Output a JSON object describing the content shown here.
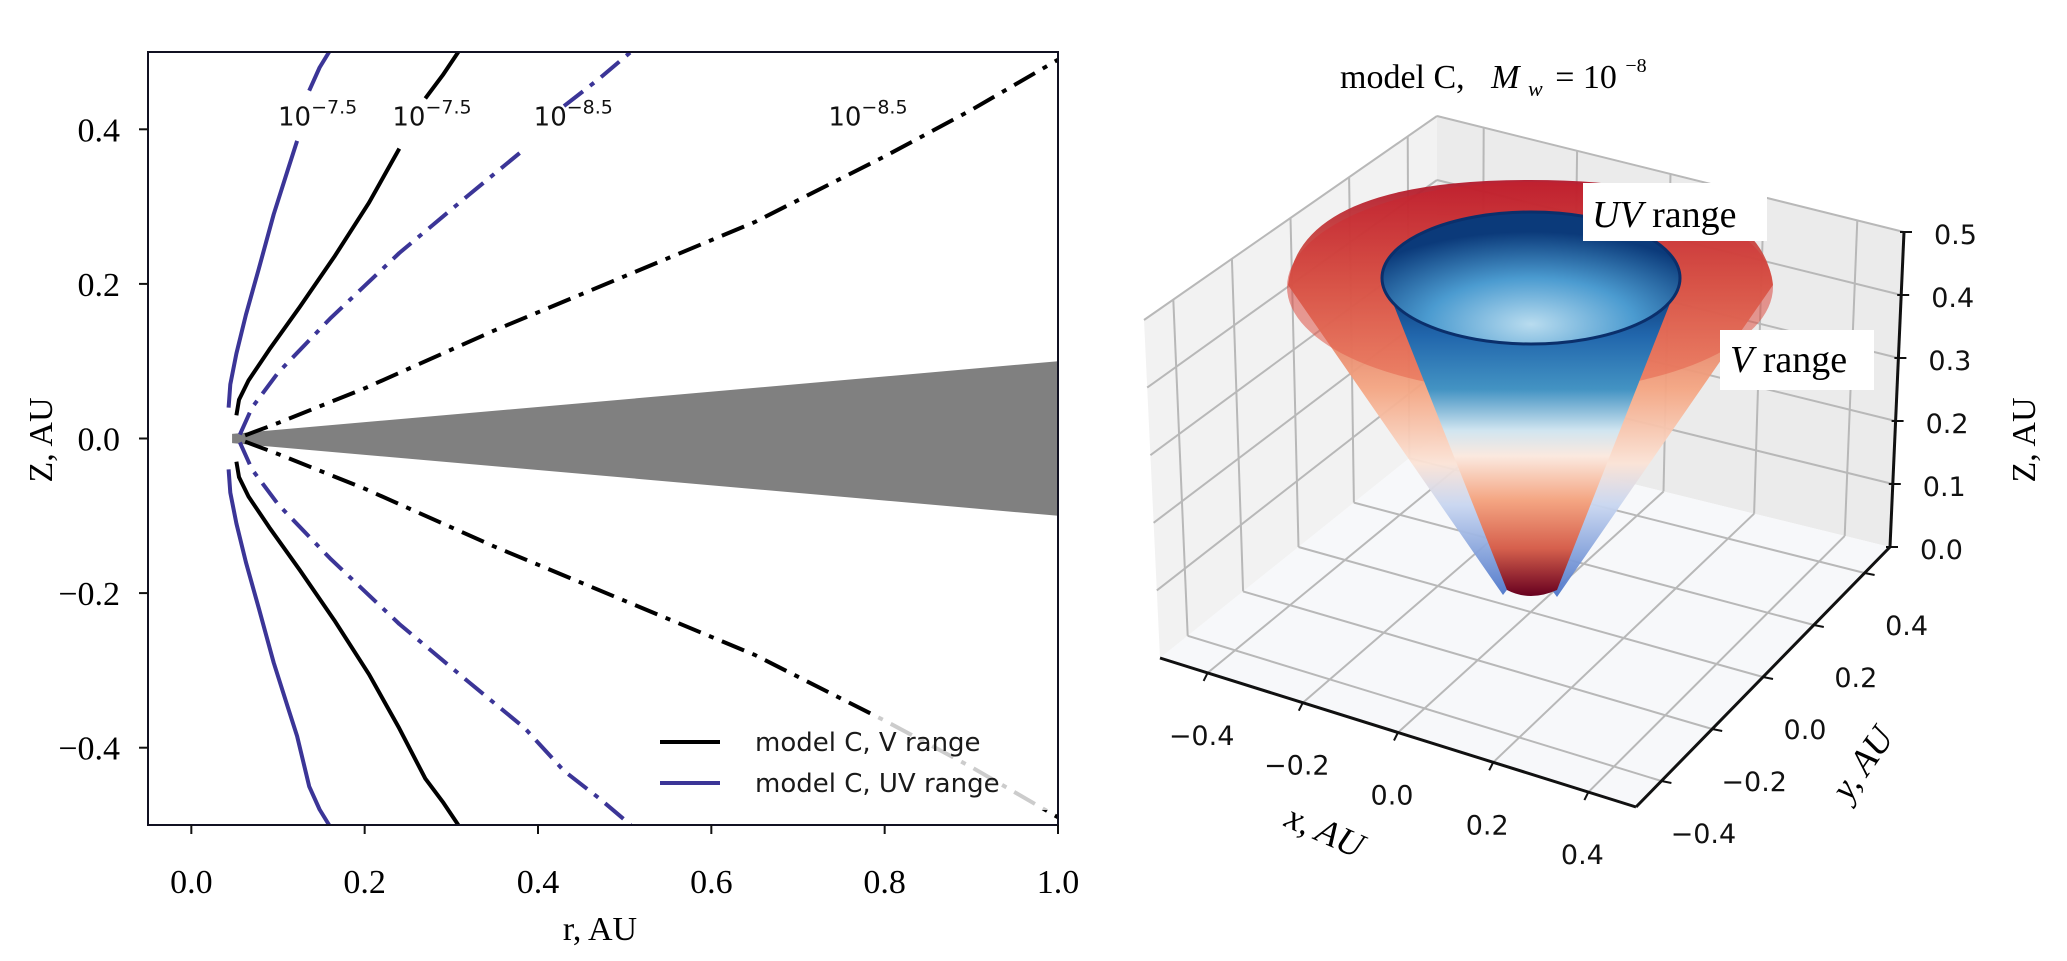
{
  "chart_data": [
    {
      "type": "line",
      "panel": "left",
      "title": "",
      "xlabel": "r, AU",
      "ylabel": "Z, AU",
      "xlim": [
        -0.05,
        1.0
      ],
      "ylim": [
        -0.5,
        0.5
      ],
      "x_ticks": [
        0.0,
        0.2,
        0.4,
        0.6,
        0.8,
        1.0
      ],
      "x_tick_labels": [
        "0.0",
        "0.2",
        "0.4",
        "0.6",
        "0.8",
        "1.0"
      ],
      "y_ticks": [
        0.4,
        0.2,
        0.0,
        -0.2,
        -0.4
      ],
      "y_tick_labels": [
        "0.4",
        "0.2",
        "0.0",
        "−0.2",
        "−0.4"
      ],
      "grid": false,
      "legend_position": "lower-right",
      "legend": [
        {
          "label": "model C, V range",
          "color": "#000000"
        },
        {
          "label": "model C, UV range",
          "color": "#3b3597"
        }
      ],
      "disk": {
        "label": "disk",
        "color": "#808080",
        "inner_r": 0.047,
        "outer_r": 1.0,
        "half_height_at_outer": 0.1
      },
      "series": [
        {
          "name": "UV range 10^-7.5",
          "range": "UV",
          "style": "solid",
          "color": "#3b3597",
          "contour_label": {
            "base": "10",
            "exp": "−7.5",
            "r": 0.1,
            "z": 0.405
          },
          "points": [
            [
              0.043,
              0.04
            ],
            [
              0.045,
              0.07
            ],
            [
              0.052,
              0.11
            ],
            [
              0.063,
              0.16
            ],
            [
              0.078,
              0.22
            ],
            [
              0.095,
              0.29
            ],
            [
              0.112,
              0.35
            ],
            [
              0.122,
              0.385
            ],
            [
              null,
              null
            ],
            [
              0.136,
              0.45
            ],
            [
              0.148,
              0.48
            ],
            [
              0.159,
              0.5
            ]
          ],
          "mirror": true
        },
        {
          "name": "V range 10^-7.5",
          "range": "V",
          "style": "solid",
          "color": "#000000",
          "contour_label": {
            "base": "10",
            "exp": "−7.5",
            "r": 0.232,
            "z": 0.405
          },
          "points": [
            [
              0.052,
              0.03
            ],
            [
              0.055,
              0.05
            ],
            [
              0.066,
              0.075
            ],
            [
              0.09,
              0.115
            ],
            [
              0.125,
              0.17
            ],
            [
              0.165,
              0.235
            ],
            [
              0.205,
              0.305
            ],
            [
              0.24,
              0.375
            ],
            [
              null,
              null
            ],
            [
              0.27,
              0.44
            ],
            [
              0.29,
              0.47
            ],
            [
              0.308,
              0.5
            ]
          ],
          "mirror": true
        },
        {
          "name": "UV range 10^-8.5",
          "range": "UV",
          "style": "dashdot",
          "color": "#3b3597",
          "contour_label": {
            "base": "10",
            "exp": "−8.5",
            "r": 0.395,
            "z": 0.405
          },
          "points": [
            [
              0.056,
              0.005
            ],
            [
              0.07,
              0.04
            ],
            [
              0.1,
              0.085
            ],
            [
              0.16,
              0.155
            ],
            [
              0.24,
              0.24
            ],
            [
              0.32,
              0.315
            ],
            [
              0.385,
              0.375
            ],
            [
              null,
              null
            ],
            [
              0.43,
              0.43
            ],
            [
              0.47,
              0.465
            ],
            [
              0.507,
              0.5
            ]
          ],
          "mirror": true
        },
        {
          "name": "V range 10^-8.5",
          "range": "V",
          "style": "dashdot",
          "color": "#000000",
          "contour_label": {
            "base": "10",
            "exp": "−8.5",
            "r": 0.735,
            "z": 0.405
          },
          "points": [
            [
              0.062,
              0.004
            ],
            [
              0.1,
              0.02
            ],
            [
              0.2,
              0.065
            ],
            [
              0.35,
              0.14
            ],
            [
              0.5,
              0.21
            ],
            [
              0.65,
              0.28
            ],
            [
              0.8,
              0.365
            ],
            [
              0.9,
              0.425
            ],
            [
              1.0,
              0.49
            ]
          ],
          "mirror": true
        }
      ]
    },
    {
      "type": "surface3d",
      "panel": "right",
      "title_prefix": "model C,",
      "title_symbol": "M",
      "title_subscript": "w",
      "title_equals": "= 10",
      "title_exponent": "−8",
      "xlabel": "x, AU",
      "ylabel": "y, AU",
      "zlabel": "Z, AU",
      "xlim": [
        -0.5,
        0.5
      ],
      "ylim": [
        -0.5,
        0.5
      ],
      "zlim": [
        0.0,
        0.5
      ],
      "x_tick_labels": [
        "−0.4",
        "−0.2",
        "0.0",
        "0.2",
        "0.4"
      ],
      "y_tick_labels": [
        "−0.4",
        "−0.2",
        "0.0",
        "0.2",
        "0.4"
      ],
      "z_tick_labels": [
        "0.0",
        "0.1",
        "0.2",
        "0.3",
        "0.4",
        "0.5"
      ],
      "grid": true,
      "surfaces": [
        {
          "name": "V range",
          "label_italic": "V",
          "label_rest": " range",
          "colormap": "coolwarm-red",
          "top_radius": 0.42,
          "apex_z": 0.0
        },
        {
          "name": "UV range",
          "label_italic": "UV",
          "label_rest": " range",
          "colormap": "Blues-to-Reds",
          "top_radius": 0.26,
          "apex_z": 0.0
        }
      ]
    }
  ]
}
